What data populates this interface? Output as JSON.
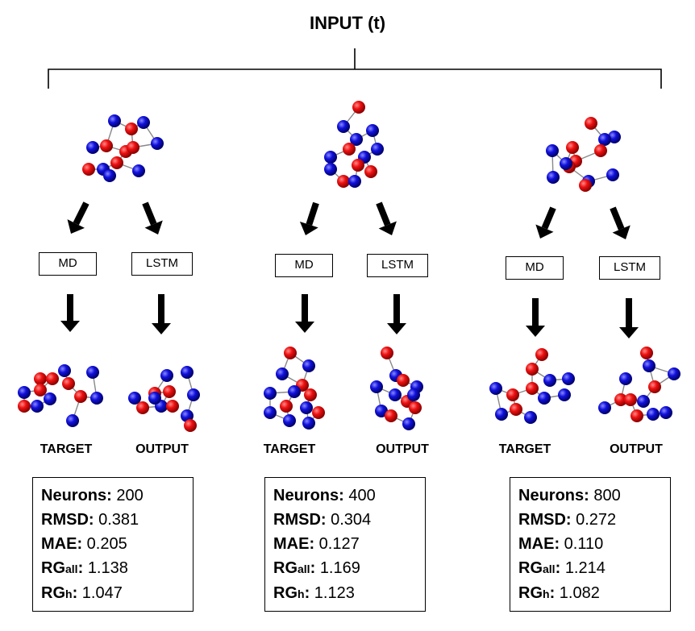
{
  "title": "INPUT (t)",
  "model_a": "MD",
  "model_b": "LSTM",
  "caption_a": "TARGET",
  "caption_b": "OUTPUT",
  "labels": {
    "neurons": "Neurons:",
    "rmsd": "RMSD:",
    "mae": "MAE:",
    "rg": "RG",
    "rg_all_sub": "all",
    "rg_h_sub": "h",
    "colon": ":"
  },
  "panels": [
    {
      "neurons": "200",
      "rmsd": "0.381",
      "mae": "0.205",
      "rg_all": "1.138",
      "rg_h": "1.047"
    },
    {
      "neurons": "400",
      "rmsd": "0.304",
      "mae": "0.127",
      "rg_all": "1.169",
      "rg_h": "1.123"
    },
    {
      "neurons": "800",
      "rmsd": "0.272",
      "mae": "0.110",
      "rg_all": " 1.214",
      "rg_h": "1.082"
    }
  ],
  "colors": {
    "red_atom": "#ee1111",
    "blue_atom": "#1111dd",
    "bond": "#888888"
  }
}
